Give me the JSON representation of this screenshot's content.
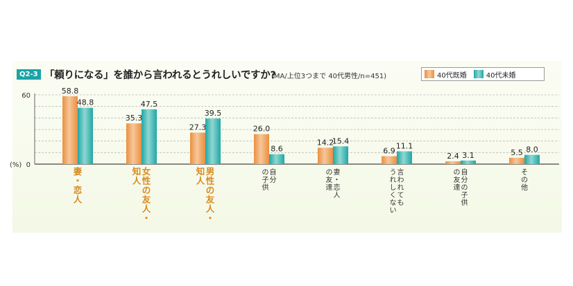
{
  "header": {
    "tag": "Q2-3",
    "title": "「頼りになる」を誰から言われるとうれしいですか?",
    "subtitle": "(MA/上位3つまで 40代男性/n=451)"
  },
  "colors": {
    "married": "#ea8f3f",
    "married_light": "#f6c79a",
    "unmarried": "#1fa7a4",
    "unmarried_light": "#8fd7d3",
    "highlight_label": "#d88a1e",
    "normal_label": "#333333",
    "grid": "#bbbbbb"
  },
  "chart_data": {
    "type": "bar",
    "ylim": [
      0,
      60
    ],
    "yticks": [
      "0",
      "60"
    ],
    "ylabel": "(%)",
    "legend": "top-right",
    "categories": [
      "妻・恋人",
      "女性の友人・知人",
      "男性の友人・知人",
      "自分の子供",
      "妻・恋人の友達",
      "言われてもうれしくない",
      "自分の子供の友達",
      "その他"
    ],
    "category_lines": [
      [
        "妻・恋人"
      ],
      [
        "女性の友人・",
        "知人"
      ],
      [
        "男性の友人・",
        "知人"
      ],
      [
        "自分",
        "の子供"
      ],
      [
        "妻・恋人",
        "の友達"
      ],
      [
        "言われても",
        "うれしくない"
      ],
      [
        "自分の子供",
        "の友達"
      ],
      [
        "その他"
      ]
    ],
    "highlight": [
      true,
      true,
      true,
      false,
      false,
      false,
      false,
      false
    ],
    "series": [
      {
        "name": "40代既婚",
        "values": [
          58.8,
          35.3,
          27.3,
          26.0,
          14.2,
          6.9,
          2.4,
          5.5
        ],
        "labels": [
          "58.8",
          "35.3",
          "27.3",
          "26.0",
          "14.2",
          "6.9",
          "2.4",
          "5.5"
        ]
      },
      {
        "name": "40代未婚",
        "values": [
          48.8,
          47.5,
          39.5,
          8.6,
          15.4,
          11.1,
          3.1,
          8.0
        ],
        "labels": [
          "48.8",
          "47.5",
          "39.5",
          "8.6",
          "15.4",
          "11.1",
          "3.1",
          "8.0"
        ]
      }
    ]
  }
}
